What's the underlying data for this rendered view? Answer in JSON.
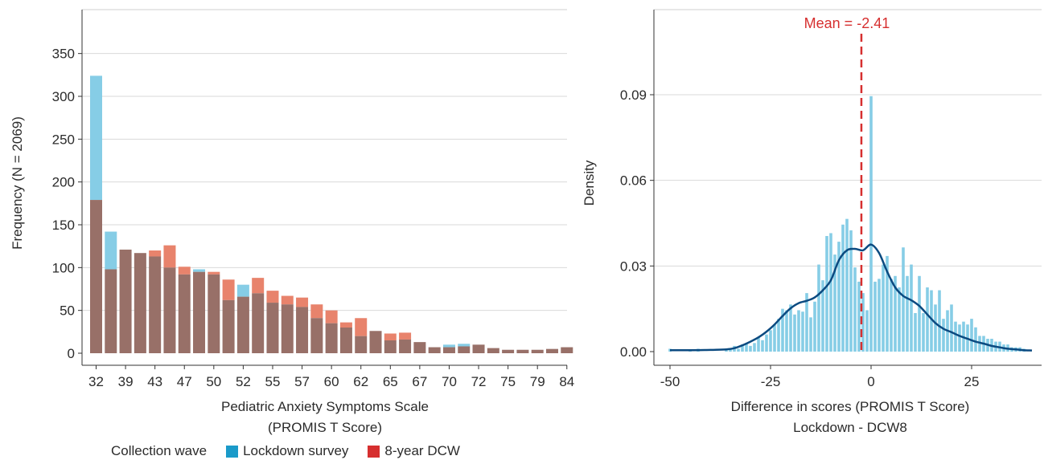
{
  "legend": {
    "title": "Collection wave",
    "entries": [
      {
        "label": "Lockdown survey",
        "color": "#1a9ac9"
      },
      {
        "label": "8-year DCW",
        "color": "#d62f2f"
      }
    ]
  },
  "chart_data": [
    {
      "type": "bar",
      "subtype": "overlapping-histogram",
      "ylabel": "Frequency (N = 2069)",
      "xlabel_lines": [
        "Pediatric Anxiety Symptoms Scale",
        "(PROMIS T Score)"
      ],
      "ylim": [
        0,
        400
      ],
      "yticks": [
        0,
        50,
        100,
        150,
        200,
        250,
        300,
        350
      ],
      "xtick_labels": [
        "32",
        "39",
        "43",
        "47",
        "50",
        "52",
        "55",
        "57",
        "60",
        "62",
        "65",
        "67",
        "70",
        "72",
        "75",
        "79",
        "84"
      ],
      "grid": "horizontal",
      "colors": {
        "lockdown": "#86cde6",
        "dcw": "#e8836c",
        "overlap": "#987068"
      },
      "series": [
        {
          "name": "Lockdown survey",
          "values": [
            324,
            142,
            121,
            117,
            113,
            100,
            92,
            98,
            92,
            62,
            80,
            70,
            59,
            57,
            54,
            41,
            35,
            30,
            20,
            26,
            15,
            16,
            13,
            7,
            10,
            11,
            10,
            6,
            4,
            4,
            4,
            5,
            7
          ]
        },
        {
          "name": "8-year DCW",
          "values": [
            179,
            98,
            121,
            117,
            120,
            126,
            101,
            95,
            95,
            86,
            66,
            88,
            73,
            67,
            65,
            57,
            50,
            36,
            41,
            26,
            23,
            24,
            13,
            7,
            7,
            8,
            10,
            6,
            4,
            4,
            4,
            5,
            7
          ]
        }
      ]
    },
    {
      "type": "bar",
      "subtype": "density-histogram",
      "ylabel": "Density",
      "xlabel_lines": [
        "Difference in scores (PROMIS T Score)",
        "Lockdown - DCW8"
      ],
      "xlim": [
        -52,
        41
      ],
      "ylim": [
        -0.002,
        0.117
      ],
      "xticks": [
        -50,
        -25,
        0,
        25
      ],
      "yticks": [
        0.0,
        0.03,
        0.06,
        0.09
      ],
      "ytick_labels": [
        "0.00",
        "0.03",
        "0.06",
        "0.09"
      ],
      "grid": "horizontal",
      "bar_color": "#86cde6",
      "kde_color": "#0b4a80",
      "mean_line": {
        "x": -2.41,
        "label": "Mean = -2.41",
        "color": "#d62f2f"
      },
      "bins_x": [
        -50,
        -49,
        -48,
        -47,
        -46,
        -45,
        -44,
        -43,
        -42,
        -41,
        -40,
        -39,
        -38,
        -37,
        -36,
        -35,
        -34,
        -33,
        -32,
        -31,
        -30,
        -29,
        -28,
        -27,
        -26,
        -25,
        -24,
        -23,
        -22,
        -21,
        -20,
        -19,
        -18,
        -17,
        -16,
        -15,
        -14,
        -13,
        -12,
        -11,
        -10,
        -9,
        -8,
        -7,
        -6,
        -5,
        -4,
        -3,
        -2,
        -1,
        0,
        1,
        2,
        3,
        4,
        5,
        6,
        7,
        8,
        9,
        10,
        11,
        12,
        13,
        14,
        15,
        16,
        17,
        18,
        19,
        20,
        21,
        22,
        23,
        24,
        25,
        26,
        27,
        28,
        29,
        30,
        31,
        32,
        33,
        34,
        35,
        36,
        37,
        38
      ],
      "densities": [
        0.001,
        0,
        0,
        0,
        0,
        0.0005,
        0,
        0.001,
        0,
        0,
        0,
        0,
        0,
        0,
        0.0005,
        0.001,
        0.002,
        0.001,
        0.0025,
        0.003,
        0.002,
        0.003,
        0.005,
        0.004,
        0.006,
        0.0075,
        0.0095,
        0.0115,
        0.015,
        0.0145,
        0.0165,
        0.013,
        0.0145,
        0.014,
        0.0205,
        0.012,
        0.0175,
        0.0305,
        0.025,
        0.0405,
        0.0415,
        0.034,
        0.0385,
        0.0445,
        0.0465,
        0.0425,
        0.0295,
        0.0245,
        0.0205,
        0.0145,
        0.0895,
        0.0245,
        0.0255,
        0.0305,
        0.0335,
        0.0255,
        0.0265,
        0.0225,
        0.0365,
        0.0265,
        0.0305,
        0.0135,
        0.0265,
        0.0135,
        0.0225,
        0.0215,
        0.0165,
        0.0215,
        0.0115,
        0.0145,
        0.0165,
        0.0105,
        0.0095,
        0.0105,
        0.0095,
        0.0115,
        0.0085,
        0.0055,
        0.0055,
        0.0045,
        0.0045,
        0.0035,
        0.0035,
        0.0025,
        0.0025,
        0.0015,
        0.0015,
        0.0015,
        0.001
      ],
      "kde": {
        "x": [
          -50,
          -45,
          -40,
          -36,
          -34,
          -32,
          -30,
          -28,
          -26,
          -24,
          -22,
          -20,
          -18,
          -16,
          -14,
          -12,
          -10,
          -8,
          -6,
          -4,
          -2,
          0,
          2,
          4,
          6,
          8,
          10,
          12,
          14,
          16,
          18,
          20,
          22,
          24,
          26,
          28,
          30,
          32,
          34,
          36,
          38,
          40
        ],
        "y": [
          0.0005,
          0.0005,
          0.0006,
          0.0008,
          0.0012,
          0.0022,
          0.0035,
          0.005,
          0.007,
          0.0095,
          0.0125,
          0.0152,
          0.017,
          0.0178,
          0.019,
          0.0215,
          0.025,
          0.032,
          0.0355,
          0.036,
          0.0355,
          0.0375,
          0.0345,
          0.028,
          0.0225,
          0.0195,
          0.018,
          0.016,
          0.013,
          0.01,
          0.008,
          0.0068,
          0.0055,
          0.0045,
          0.0035,
          0.0028,
          0.002,
          0.0015,
          0.001,
          0.0008,
          0.0005,
          0.0004
        ]
      }
    }
  ]
}
